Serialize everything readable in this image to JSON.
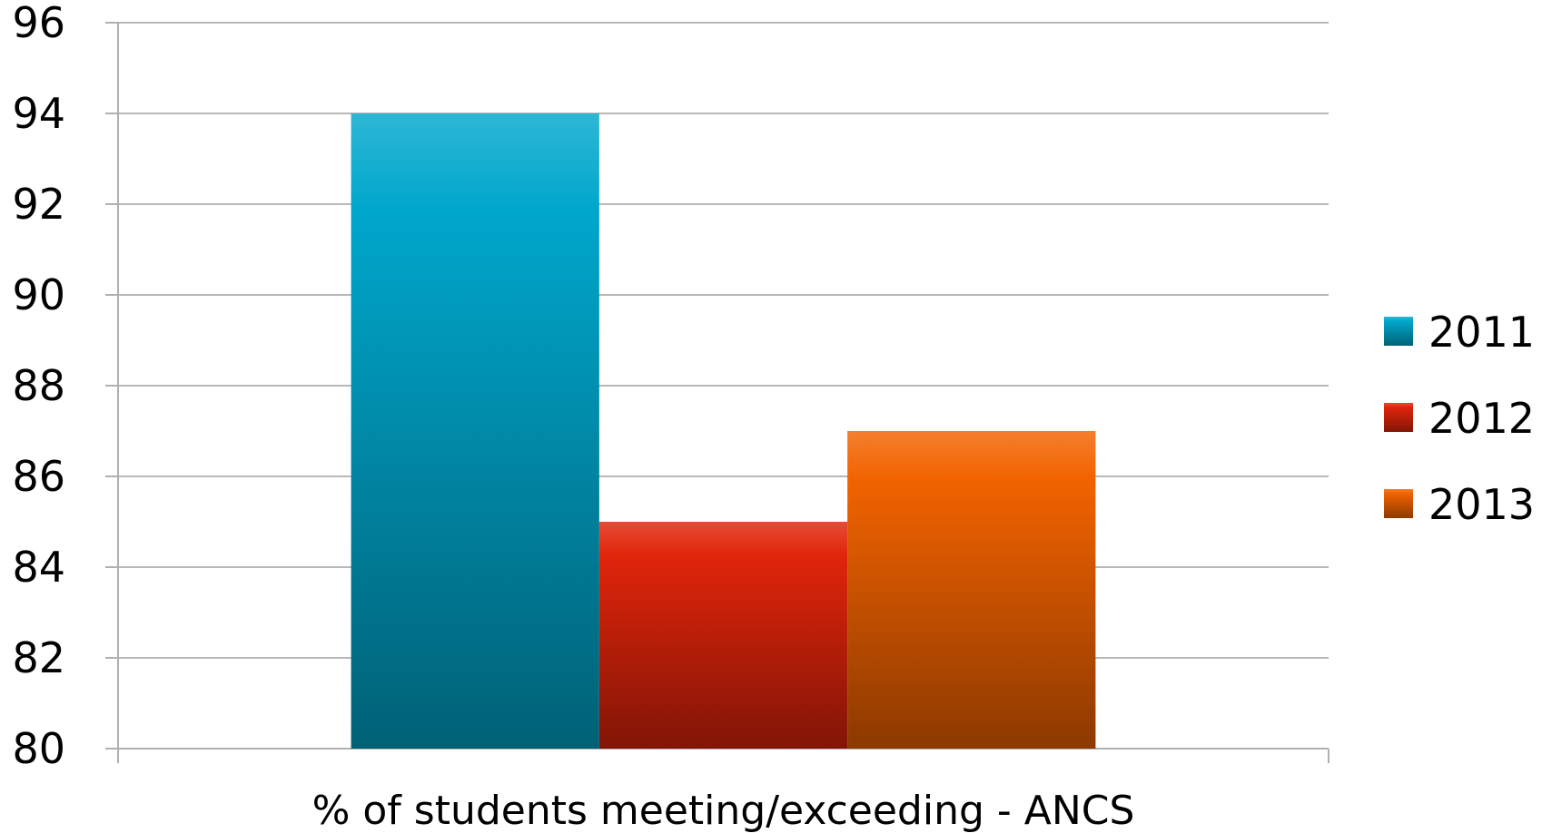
{
  "chart_data": {
    "type": "bar",
    "categories": [
      "% of students meeting/exceeding - ANCS"
    ],
    "series": [
      {
        "name": "2011",
        "values": [
          94
        ],
        "color": "#00a7cc"
      },
      {
        "name": "2012",
        "values": [
          85
        ],
        "color": "#e0250a"
      },
      {
        "name": "2013",
        "values": [
          87
        ],
        "color": "#f26300"
      }
    ],
    "ylim": [
      80,
      96
    ],
    "yticks": [
      "80",
      "82",
      "84",
      "86",
      "88",
      "90",
      "92",
      "94",
      "96"
    ],
    "grid": true,
    "legend": "right"
  }
}
